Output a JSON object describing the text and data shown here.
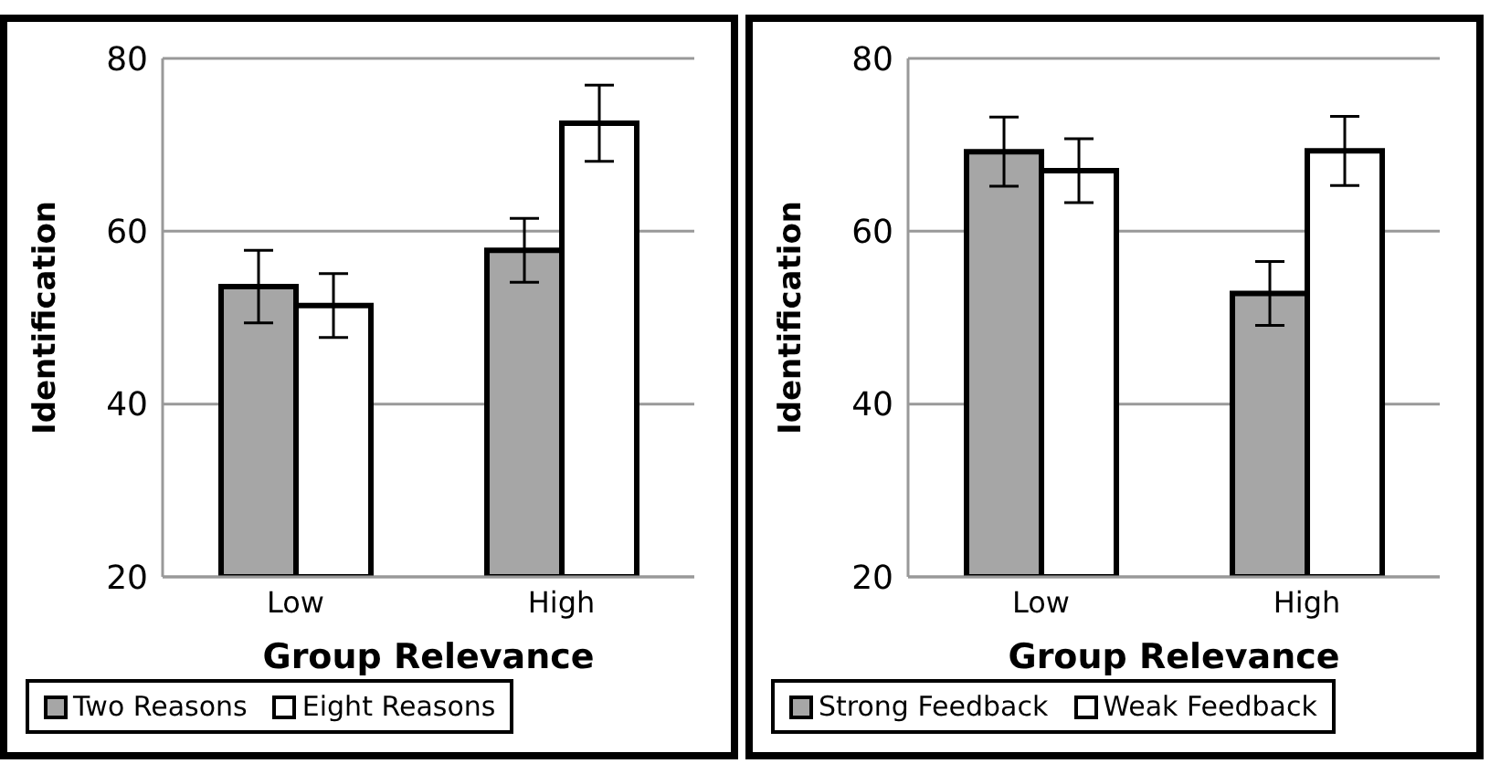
{
  "chart_data": [
    {
      "type": "bar",
      "xlabel": "Group Relevance",
      "ylabel": "Identification",
      "categories": [
        "Low",
        "High"
      ],
      "ylim": [
        20,
        80
      ],
      "yticks": [
        20,
        40,
        60,
        80
      ],
      "grid": "y",
      "legend": "bottom",
      "series": [
        {
          "name": "Two Reasons",
          "color": "#a6a6a6",
          "values": [
            53.6,
            57.8
          ],
          "errors": [
            4.2,
            3.7
          ]
        },
        {
          "name": "Eight Reasons",
          "color": "#ffffff",
          "values": [
            51.4,
            72.5
          ],
          "errors": [
            3.7,
            4.4
          ]
        }
      ]
    },
    {
      "type": "bar",
      "xlabel": "Group Relevance",
      "ylabel": "Identification",
      "categories": [
        "Low",
        "High"
      ],
      "ylim": [
        20,
        80
      ],
      "yticks": [
        20,
        40,
        60,
        80
      ],
      "grid": "y",
      "legend": "bottom",
      "series": [
        {
          "name": "Strong Feedback",
          "color": "#a6a6a6",
          "values": [
            69.2,
            52.8
          ],
          "errors": [
            4.0,
            3.7
          ]
        },
        {
          "name": "Weak Feedback",
          "color": "#ffffff",
          "values": [
            67.0,
            69.3
          ],
          "errors": [
            3.7,
            4.0
          ]
        }
      ]
    }
  ]
}
